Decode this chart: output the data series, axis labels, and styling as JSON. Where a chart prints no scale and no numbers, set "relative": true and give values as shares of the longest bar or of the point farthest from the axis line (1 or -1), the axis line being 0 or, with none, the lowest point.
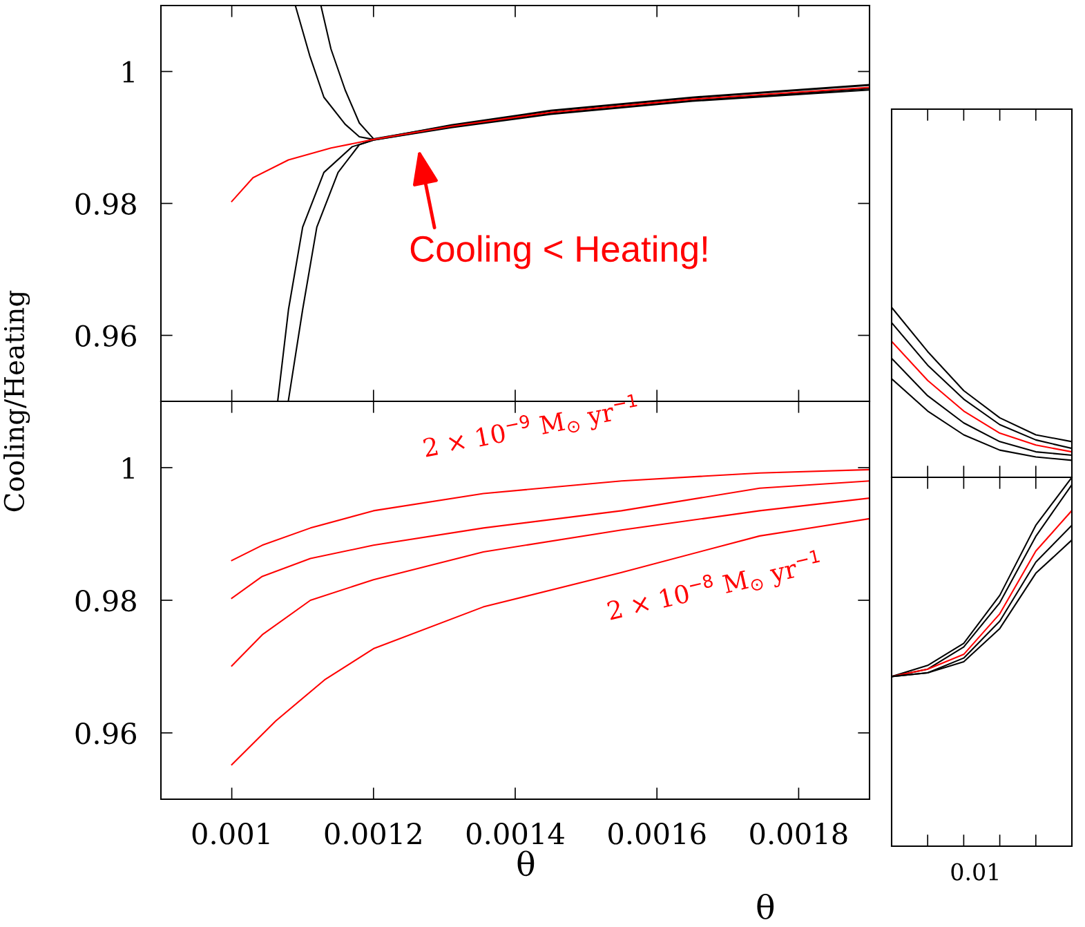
{
  "chart_data": [
    {
      "type": "line",
      "xlim": [
        0.0009,
        0.0019
      ],
      "ylim": [
        0.95,
        1.01
      ],
      "xticks": [
        0.001,
        0.0012,
        0.0014,
        0.0016,
        0.0018
      ],
      "yticks": [
        0.96,
        0.98,
        1
      ],
      "tick_labels": "y",
      "grid": false,
      "legend": false,
      "annotations": [
        {
          "text": "Cooling < Heating!",
          "x": 0.00126,
          "y": 0.9902
        }
      ],
      "series": [
        {
          "color": "#000000",
          "x": [
            0.00109,
            0.00111,
            0.00113,
            0.00116,
            0.00118,
            0.0012,
            0.00131,
            0.00145,
            0.00165,
            0.0019
          ],
          "values": [
            1.0099,
            1.0024,
            0.9961,
            0.992,
            0.9901,
            0.9897,
            0.9919,
            0.9941,
            0.9961,
            0.998
          ]
        },
        {
          "color": "#000000",
          "x": [
            0.001126,
            0.00114,
            0.00116,
            0.00118,
            0.0012,
            0.00131,
            0.00145,
            0.00165,
            0.0019
          ],
          "values": [
            1.0099,
            1.0034,
            0.9972,
            0.9922,
            0.9898,
            0.9918,
            0.994,
            0.996,
            0.9979
          ]
        },
        {
          "color": "#000000",
          "x": [
            0.001065,
            0.00108,
            0.0011,
            0.00113,
            0.00117,
            0.0012,
            0.00131,
            0.00145,
            0.00165,
            0.0019
          ],
          "values": [
            0.9502,
            0.9639,
            0.9764,
            0.9847,
            0.9886,
            0.9896,
            0.9916,
            0.9936,
            0.9956,
            0.9974
          ]
        },
        {
          "color": "#000000",
          "x": [
            0.00108,
            0.0011,
            0.00112,
            0.00115,
            0.00118,
            0.0012,
            0.00131,
            0.00145,
            0.00165,
            0.0019
          ],
          "values": [
            0.9502,
            0.9639,
            0.9764,
            0.9847,
            0.9889,
            0.9896,
            0.9915,
            0.9935,
            0.9955,
            0.9972
          ]
        },
        {
          "color": "#ff0000",
          "x": [
            0.001,
            0.00103,
            0.00108,
            0.00114,
            0.0012,
            0.00131,
            0.00145,
            0.00165,
            0.0019
          ],
          "values": [
            0.9803,
            0.9839,
            0.9866,
            0.9884,
            0.9897,
            0.9917,
            0.9938,
            0.9958,
            0.9976
          ]
        }
      ]
    },
    {
      "type": "line",
      "ylabel": "Cooling/Heating",
      "xlabel": "θ",
      "xlim": [
        0.0009,
        0.0019
      ],
      "ylim": [
        0.95,
        1.01
      ],
      "xticks": [
        0.001,
        0.0012,
        0.0014,
        0.0016,
        0.0018
      ],
      "yticks": [
        0.96,
        0.98,
        1
      ],
      "grid": false,
      "legend": false,
      "annotations": [
        "2 × 10$^{−9}$ M$_{⊙}$ yr$^{−1}$",
        "2 × 10$^{−8}$ M$_{⊙}$ yr$^{−1}$"
      ],
      "series": [
        {
          "color": "#ff0000",
          "x": [
            0.001,
            0.001043,
            0.001111,
            0.0012,
            0.001355,
            0.00155,
            0.001745,
            0.0019
          ],
          "values": [
            0.986,
            0.9883,
            0.9909,
            0.9935,
            0.9961,
            0.998,
            0.9992,
            0.9997
          ]
        },
        {
          "color": "#ff0000",
          "x": [
            0.001,
            0.001043,
            0.001111,
            0.0012,
            0.001355,
            0.00155,
            0.001745,
            0.0019
          ],
          "values": [
            0.9803,
            0.9836,
            0.9863,
            0.9883,
            0.9909,
            0.9935,
            0.9969,
            0.998
          ]
        },
        {
          "color": "#ff0000",
          "x": [
            0.001,
            0.001043,
            0.001111,
            0.0012,
            0.001355,
            0.00155,
            0.001745,
            0.0019
          ],
          "values": [
            0.9701,
            0.9748,
            0.98,
            0.9831,
            0.9873,
            0.9906,
            0.9935,
            0.9954
          ]
        },
        {
          "color": "#ff0000",
          "x": [
            0.001,
            0.001062,
            0.001131,
            0.0012,
            0.001355,
            0.00155,
            0.001745,
            0.0019
          ],
          "values": [
            0.9552,
            0.9618,
            0.968,
            0.9727,
            0.979,
            0.9842,
            0.9897,
            0.9923
          ]
        }
      ]
    },
    {
      "type": "line",
      "relative": true,
      "categories": [
        null,
        null,
        null,
        null,
        null,
        null
      ],
      "tick_labels": false,
      "grid": false,
      "legend": false,
      "series": [
        {
          "color": "#000000",
          "values": [
            1,
            0.74,
            0.51,
            0.35,
            0.25,
            0.21
          ]
        },
        {
          "color": "#000000",
          "values": [
            0.91,
            0.66,
            0.46,
            0.31,
            0.22,
            0.17
          ]
        },
        {
          "color": "#ff0000",
          "values": [
            0.8,
            0.57,
            0.39,
            0.26,
            0.19,
            0.15
          ]
        },
        {
          "color": "#000000",
          "values": [
            0.7,
            0.48,
            0.32,
            0.21,
            0.15,
            0.13
          ]
        },
        {
          "color": "#000000",
          "values": [
            0.58,
            0.39,
            0.25,
            0.16,
            0.12,
            0.1
          ]
        }
      ]
    },
    {
      "type": "line",
      "relative": true,
      "xlabel": "θ",
      "categories": [
        null,
        null,
        null,
        null,
        null,
        null
      ],
      "tick_labels": false,
      "grid": false,
      "legend": false,
      "annotations": [
        "0.01"
      ],
      "series": [
        {
          "color": "#000000",
          "values": [
            0.46,
            0.49,
            0.55,
            0.68,
            0.87,
            1
          ]
        },
        {
          "color": "#000000",
          "values": [
            0.46,
            0.48,
            0.54,
            0.66,
            0.84,
            0.98
          ]
        },
        {
          "color": "#ff0000",
          "values": [
            0.46,
            0.48,
            0.52,
            0.63,
            0.8,
            0.91
          ]
        },
        {
          "color": "#000000",
          "values": [
            0.46,
            0.47,
            0.51,
            0.61,
            0.77,
            0.87
          ]
        },
        {
          "color": "#000000",
          "values": [
            0.46,
            0.47,
            0.5,
            0.59,
            0.74,
            0.83
          ]
        }
      ]
    }
  ]
}
